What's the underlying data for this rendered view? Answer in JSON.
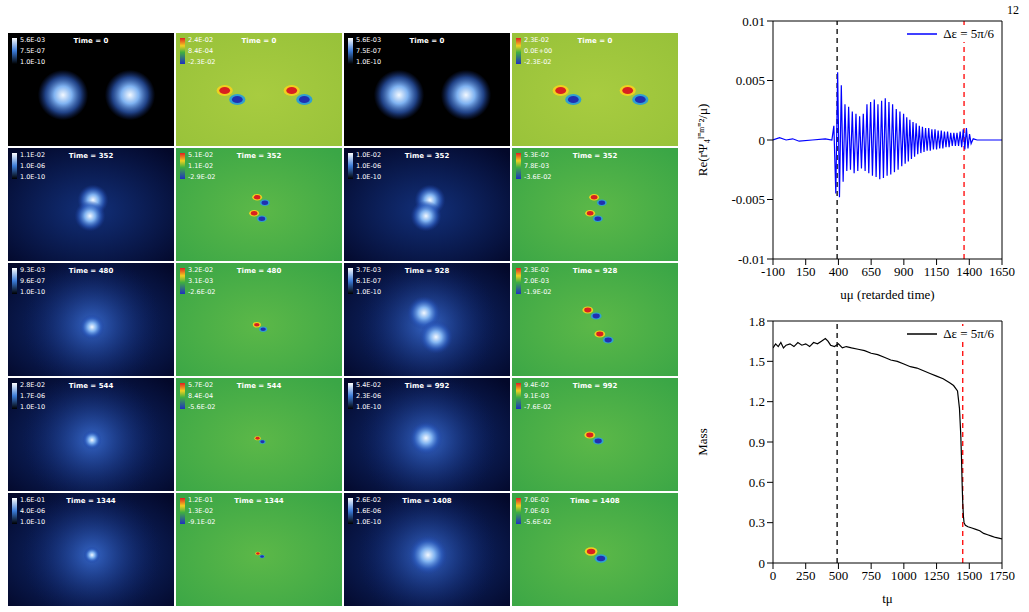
{
  "page_number": "12",
  "panels": [
    [
      {
        "time": "Time = 0",
        "colorbar": [
          "5.6E-03",
          "7.5E-07",
          "1.0E-10"
        ]
      },
      {
        "time": "Time = 0",
        "colorbar": [
          "2.4E-02",
          "8.4E-04",
          "-2.3E-02"
        ]
      },
      {
        "time": "Time = 0",
        "colorbar": [
          "5.6E-03",
          "7.5E-07",
          "1.0E-10"
        ]
      },
      {
        "time": "Time = 0",
        "colorbar": [
          "2.3E-02",
          "0.0E+00",
          "-2.3E-02"
        ]
      }
    ],
    [
      {
        "time": "Time = 352",
        "colorbar": [
          "1.1E-02",
          "1.0E-06",
          "1.0E-10"
        ]
      },
      {
        "time": "Time = 352",
        "colorbar": [
          "5.1E-02",
          "1.1E-02",
          "-2.9E-02"
        ]
      },
      {
        "time": "Time = 352",
        "colorbar": [
          "1.0E-02",
          "1.0E-06",
          "1.0E-10"
        ]
      },
      {
        "time": "Time = 352",
        "colorbar": [
          "5.3E-02",
          "7.8E-03",
          "-3.6E-02"
        ]
      }
    ],
    [
      {
        "time": "Time = 480",
        "colorbar": [
          "9.3E-03",
          "9.6E-07",
          "1.0E-10"
        ]
      },
      {
        "time": "Time = 480",
        "colorbar": [
          "3.2E-02",
          "3.1E-03",
          "-2.6E-02"
        ]
      },
      {
        "time": "Time = 928",
        "colorbar": [
          "3.7E-03",
          "6.1E-07",
          "1.0E-10"
        ]
      },
      {
        "time": "Time = 928",
        "colorbar": [
          "2.3E-02",
          "2.0E-03",
          "-1.9E-02"
        ]
      }
    ],
    [
      {
        "time": "Time = 544",
        "colorbar": [
          "2.8E-02",
          "1.7E-06",
          "1.0E-10"
        ]
      },
      {
        "time": "Time = 544",
        "colorbar": [
          "5.7E-02",
          "8.4E-04",
          "-5.6E-02"
        ]
      },
      {
        "time": "Time = 992",
        "colorbar": [
          "5.4E-02",
          "2.3E-06",
          "1.0E-10"
        ]
      },
      {
        "time": "Time = 992",
        "colorbar": [
          "9.4E-02",
          "9.1E-03",
          "-7.6E-02"
        ]
      }
    ],
    [
      {
        "time": "Time = 1344",
        "colorbar": [
          "1.6E-01",
          "4.0E-06",
          "1.0E-10"
        ]
      },
      {
        "time": "Time = 1344",
        "colorbar": [
          "1.2E-01",
          "1.3E-02",
          "-9.1E-02"
        ]
      },
      {
        "time": "Time = 1408",
        "colorbar": [
          "2.6E-02",
          "1.6E-06",
          "1.0E-10"
        ]
      },
      {
        "time": "Time = 1408",
        "colorbar": [
          "7.0E-02",
          "7.0E-03",
          "-5.6E-02"
        ]
      }
    ]
  ],
  "chart_data": [
    {
      "type": "line",
      "x_label": "uμ (retarded time)",
      "y_label": "Re(rΨ₄ˡ⁼ᵐ⁼²/μ)",
      "xlim": [
        -100,
        1650
      ],
      "xticks": [
        -100,
        150,
        400,
        650,
        900,
        1150,
        1400,
        1650
      ],
      "ylim": [
        -0.01,
        0.01
      ],
      "yticks": [
        -0.01,
        -0.005,
        0,
        0.005,
        0.01
      ],
      "legend": "upper right",
      "x": [
        -100,
        -50,
        0,
        50,
        100,
        200,
        300,
        350,
        365,
        380,
        394,
        408,
        422,
        436,
        450,
        464,
        478,
        492,
        506,
        520,
        534,
        548,
        562,
        576,
        590,
        604,
        618,
        632,
        646,
        660,
        674,
        688,
        702,
        716,
        730,
        744,
        758,
        772,
        786,
        800,
        814,
        828,
        842,
        856,
        870,
        884,
        898,
        910,
        922,
        934,
        946,
        958,
        970,
        982,
        994,
        1006,
        1018,
        1030,
        1042,
        1054,
        1066,
        1078,
        1090,
        1102,
        1114,
        1126,
        1138,
        1150,
        1162,
        1174,
        1186,
        1198,
        1210,
        1222,
        1234,
        1246,
        1258,
        1270,
        1282,
        1294,
        1306,
        1318,
        1330,
        1342,
        1354,
        1366,
        1378,
        1390,
        1402,
        1414,
        1430,
        1460,
        1550,
        1650
      ],
      "series": [
        {
          "name": "Δε = 5π/6",
          "color": "#0000ff",
          "values": [
            0,
            0.0002,
            0,
            0.0001,
            -0.0001,
            0,
            0.0001,
            0,
            0.0012,
            -0.0045,
            0.0057,
            -0.0048,
            0.0046,
            -0.0035,
            0.003,
            -0.0026,
            0.0028,
            -0.0025,
            0.0024,
            -0.0028,
            0.0022,
            -0.0026,
            0.002,
            -0.0024,
            0.0022,
            -0.0026,
            0.003,
            -0.0028,
            0.0032,
            -0.003,
            0.0034,
            -0.0031,
            0.003,
            -0.0033,
            0.0033,
            -0.0032,
            0.0035,
            -0.003,
            0.0032,
            -0.0029,
            0.003,
            -0.0027,
            0.0026,
            -0.0025,
            0.0024,
            -0.0022,
            0.0022,
            -0.002,
            0.0019,
            -0.0018,
            0.0017,
            -0.0016,
            0.0015,
            -0.0014,
            0.0014,
            -0.0012,
            0.0012,
            -0.0011,
            0.0011,
            -0.001,
            0.001,
            -0.0009,
            0.001,
            -0.0009,
            0.0009,
            -0.0008,
            0.0009,
            -0.0008,
            0.0008,
            -0.0007,
            0.0008,
            -0.0007,
            0.0007,
            -0.0006,
            0.0007,
            -0.0006,
            0.0006,
            -0.0005,
            0.0006,
            -0.0005,
            0.0006,
            -0.0005,
            0.0007,
            -0.0006,
            0.0009,
            -0.0008,
            0.001,
            -0.0007,
            0.0005,
            -0.0003,
            0.0001,
            0,
            0,
            0
          ]
        }
      ],
      "vlines": [
        {
          "x": 390,
          "color": "#000000"
        },
        {
          "x": 1360,
          "color": "#ff0000"
        }
      ]
    },
    {
      "type": "line",
      "x_label": "tμ",
      "y_label": "Mass",
      "xlim": [
        0,
        1750
      ],
      "xticks": [
        0,
        250,
        500,
        750,
        1000,
        1250,
        1500,
        1750
      ],
      "ylim": [
        0,
        1.8
      ],
      "yticks": [
        0,
        0.3,
        0.6,
        0.9,
        1.2,
        1.5,
        1.8
      ],
      "legend": "upper right",
      "x": [
        0,
        20,
        40,
        60,
        80,
        100,
        130,
        160,
        190,
        220,
        250,
        280,
        310,
        340,
        370,
        400,
        420,
        440,
        470,
        500,
        530,
        560,
        600,
        650,
        700,
        750,
        800,
        850,
        900,
        950,
        1000,
        1050,
        1100,
        1150,
        1200,
        1250,
        1300,
        1350,
        1380,
        1410,
        1425,
        1435,
        1440,
        1445,
        1450,
        1455,
        1460,
        1470,
        1490,
        1520,
        1550,
        1580,
        1610,
        1640,
        1670,
        1700,
        1750
      ],
      "series": [
        {
          "name": "Δε = 5π/6",
          "color": "#000000",
          "values": [
            1.6,
            1.63,
            1.61,
            1.64,
            1.6,
            1.62,
            1.63,
            1.61,
            1.64,
            1.62,
            1.63,
            1.61,
            1.64,
            1.63,
            1.65,
            1.67,
            1.65,
            1.62,
            1.61,
            1.63,
            1.6,
            1.61,
            1.6,
            1.59,
            1.58,
            1.56,
            1.55,
            1.53,
            1.51,
            1.5,
            1.48,
            1.46,
            1.45,
            1.43,
            1.41,
            1.39,
            1.37,
            1.34,
            1.32,
            1.28,
            1.15,
            0.95,
            0.8,
            0.6,
            0.45,
            0.35,
            0.3,
            0.28,
            0.27,
            0.26,
            0.25,
            0.24,
            0.22,
            0.21,
            0.2,
            0.19,
            0.18
          ]
        }
      ],
      "vlines": [
        {
          "x": 490,
          "color": "#000000"
        },
        {
          "x": 1450,
          "color": "#ff0000"
        }
      ]
    }
  ]
}
